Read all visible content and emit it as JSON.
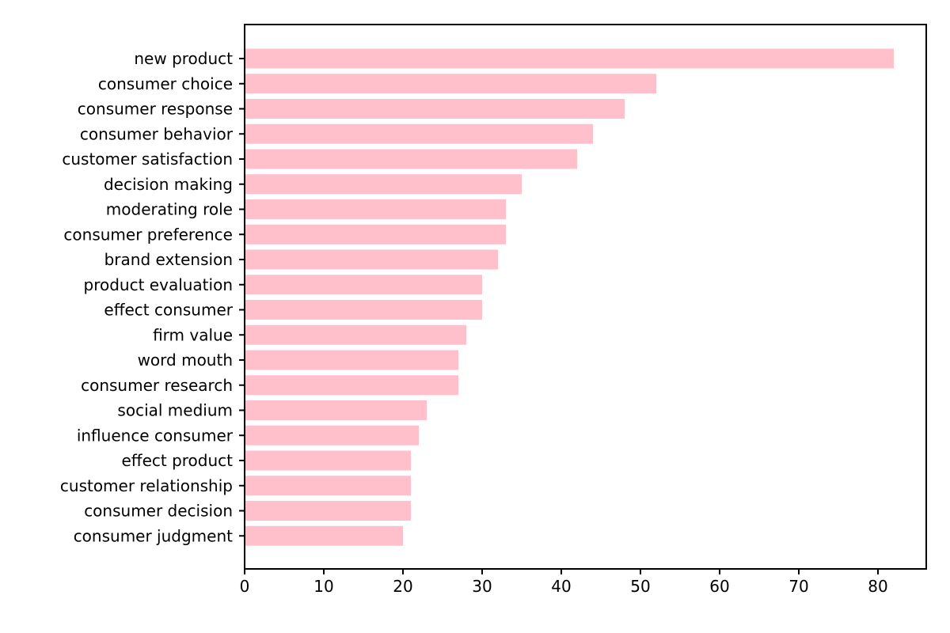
{
  "chart_data": {
    "type": "bar",
    "orientation": "horizontal",
    "title": "",
    "xlabel": "",
    "ylabel": "",
    "categories": [
      "new product",
      "consumer choice",
      "consumer response",
      "consumer behavior",
      "customer satisfaction",
      "decision making",
      "moderating role",
      "consumer preference",
      "brand extension",
      "product evaluation",
      "effect consumer",
      "firm value",
      "word mouth",
      "consumer research",
      "social medium",
      "influence consumer",
      "effect product",
      "customer relationship",
      "consumer decision",
      "consumer judgment"
    ],
    "values": [
      82,
      52,
      48,
      44,
      42,
      35,
      33,
      33,
      32,
      30,
      30,
      28,
      27,
      27,
      23,
      22,
      21,
      21,
      21,
      20
    ],
    "xlim": [
      0,
      86.1
    ],
    "xticks": [
      0,
      10,
      20,
      30,
      40,
      50,
      60,
      70,
      80
    ],
    "bar_color": "#ffc0cb",
    "grid": false,
    "legend": "none"
  }
}
